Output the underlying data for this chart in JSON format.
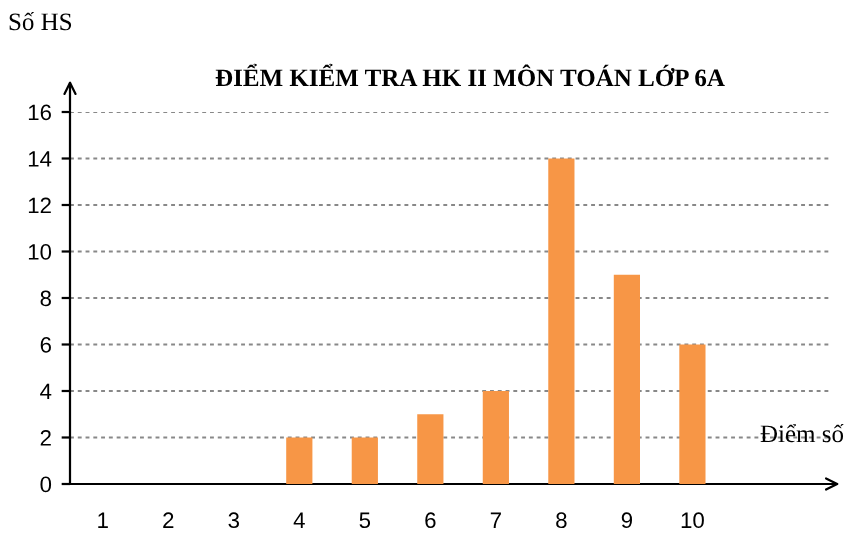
{
  "chart_data": {
    "type": "bar",
    "title": "ĐIỂM KIỂM TRA HK II MÔN TOÁN LỚP 6A",
    "xlabel": "Điểm số",
    "ylabel": "Số HS",
    "categories": [
      "1",
      "2",
      "3",
      "4",
      "5",
      "6",
      "7",
      "8",
      "9",
      "10"
    ],
    "values": [
      0,
      0,
      0,
      2,
      2,
      3,
      4,
      14,
      9,
      6
    ],
    "color": "#f79646",
    "ylim": [
      0,
      16
    ],
    "yticks": [
      0,
      2,
      4,
      6,
      8,
      10,
      12,
      14,
      16
    ],
    "grid": "y",
    "legend": false
  }
}
